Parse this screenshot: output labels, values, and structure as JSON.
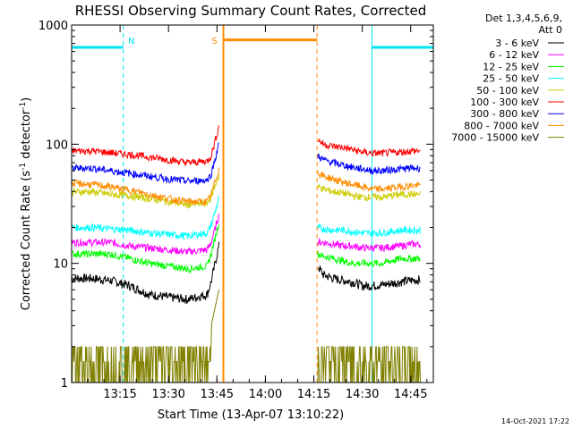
{
  "chart_data": {
    "type": "line",
    "title": "RHESSI Observing Summary Count Rates, Corrected",
    "xlabel": "Start Time (13-Apr-07 13:10:22)",
    "ylabel_main": "Corrected Count Rate (s",
    "ylabel_sup1": "-1",
    "ylabel_mid": " detector",
    "ylabel_sup2": "-1",
    "ylabel_end": ")",
    "yscale": "log",
    "ylim": [
      1,
      1000
    ],
    "xlim_minutes": [
      13.0,
      14.8667
    ],
    "x_ticks": [
      {
        "label": "13:15",
        "value": 13.25
      },
      {
        "label": "13:30",
        "value": 13.5
      },
      {
        "label": "13:45",
        "value": 13.75
      },
      {
        "label": "14:00",
        "value": 14.0
      },
      {
        "label": "14:15",
        "value": 14.25
      },
      {
        "label": "14:30",
        "value": 14.5
      },
      {
        "label": "14:45",
        "value": 14.75
      }
    ],
    "y_ticks": [
      {
        "label": "1",
        "value": 1
      },
      {
        "label": "10",
        "value": 10
      },
      {
        "label": "100",
        "value": 100
      },
      {
        "label": "1000",
        "value": 1000
      }
    ],
    "legend": {
      "position": "right",
      "header1": "Det 1,3,4,5,6,9,",
      "header2": "Att 0"
    },
    "series": [
      {
        "name": "3 - 6 keV",
        "color": "#000000",
        "segments": [
          {
            "x": [
              13.0,
              13.1,
              13.2,
              13.3,
              13.4,
              13.5,
              13.6,
              13.7,
              13.72,
              13.76
            ],
            "y": [
              7.5,
              7.5,
              7.2,
              6.5,
              5.5,
              5.2,
              5.0,
              5.5,
              7,
              14
            ]
          },
          {
            "x": [
              14.27,
              14.3,
              14.35,
              14.4,
              14.45,
              14.5,
              14.55,
              14.6,
              14.65,
              14.7,
              14.75,
              14.8
            ],
            "y": [
              9.5,
              8.0,
              7.5,
              7.2,
              7.0,
              6.5,
              6.5,
              6.6,
              6.8,
              7.0,
              7.2,
              7.3
            ]
          }
        ]
      },
      {
        "name": "6 - 12 keV",
        "color": "#ff00ff",
        "segments": [
          {
            "x": [
              13.0,
              13.1,
              13.2,
              13.3,
              13.4,
              13.5,
              13.6,
              13.7,
              13.72,
              13.76
            ],
            "y": [
              15,
              15,
              15,
              14,
              13.5,
              13,
              12.5,
              13,
              15,
              25
            ]
          },
          {
            "x": [
              14.27,
              14.3,
              14.35,
              14.4,
              14.45,
              14.5,
              14.55,
              14.6,
              14.65,
              14.7,
              14.75,
              14.8
            ],
            "y": [
              15,
              15,
              14.5,
              14,
              14,
              13.5,
              13.5,
              13.5,
              13.8,
              14,
              14.5,
              14.5
            ]
          }
        ]
      },
      {
        "name": "12 - 25 keV",
        "color": "#00ff00",
        "segments": [
          {
            "x": [
              13.0,
              13.1,
              13.2,
              13.3,
              13.4,
              13.5,
              13.6,
              13.7,
              13.72,
              13.76
            ],
            "y": [
              12,
              12,
              12,
              11,
              10,
              9.5,
              9,
              9.5,
              12,
              22
            ]
          },
          {
            "x": [
              14.27,
              14.3,
              14.35,
              14.4,
              14.45,
              14.5,
              14.55,
              14.6,
              14.65,
              14.7,
              14.75,
              14.8
            ],
            "y": [
              12,
              11.5,
              11,
              10.5,
              10,
              10,
              10,
              10,
              10.5,
              11,
              11,
              11
            ]
          }
        ]
      },
      {
        "name": "25 - 50 keV",
        "color": "#00ffff",
        "segments": [
          {
            "x": [
              13.0,
              13.1,
              13.2,
              13.3,
              13.4,
              13.5,
              13.6,
              13.7,
              13.72,
              13.76
            ],
            "y": [
              20,
              20,
              19.5,
              19,
              18,
              17.5,
              17,
              18,
              21,
              35
            ]
          },
          {
            "x": [
              14.27,
              14.3,
              14.35,
              14.4,
              14.45,
              14.5,
              14.55,
              14.6,
              14.65,
              14.7,
              14.75,
              14.8
            ],
            "y": [
              20,
              19.5,
              19,
              19,
              18.5,
              18,
              18,
              18,
              18.5,
              19,
              19,
              19
            ]
          }
        ]
      },
      {
        "name": "50 - 100 keV",
        "color": "#cccc00",
        "segments": [
          {
            "x": [
              13.0,
              13.1,
              13.2,
              13.3,
              13.4,
              13.5,
              13.6,
              13.7,
              13.72,
              13.76
            ],
            "y": [
              40,
              40,
              38,
              37,
              35,
              33,
              31,
              32,
              36,
              55
            ]
          },
          {
            "x": [
              14.27,
              14.3,
              14.35,
              14.4,
              14.45,
              14.5,
              14.55,
              14.6,
              14.65,
              14.7,
              14.75,
              14.8
            ],
            "y": [
              44,
              42,
              40,
              39,
              37,
              36,
              36,
              36,
              37,
              38,
              38,
              38
            ]
          }
        ]
      },
      {
        "name": "100 - 300 keV",
        "color": "#ff0000",
        "segments": [
          {
            "x": [
              13.0,
              13.1,
              13.2,
              13.3,
              13.4,
              13.5,
              13.6,
              13.7,
              13.72,
              13.76
            ],
            "y": [
              88,
              88,
              85,
              82,
              78,
              74,
              70,
              72,
              80,
              140
            ]
          },
          {
            "x": [
              14.27,
              14.3,
              14.35,
              14.4,
              14.45,
              14.5,
              14.55,
              14.6,
              14.65,
              14.7,
              14.75,
              14.8
            ],
            "y": [
              110,
              100,
              96,
              94,
              90,
              86,
              84,
              84,
              85,
              86,
              88,
              88
            ]
          }
        ]
      },
      {
        "name": "300 - 800 keV",
        "color": "#0000ff",
        "segments": [
          {
            "x": [
              13.0,
              13.1,
              13.2,
              13.3,
              13.4,
              13.5,
              13.6,
              13.7,
              13.72,
              13.76
            ],
            "y": [
              63,
              63,
              60,
              57,
              54,
              51,
              49,
              50,
              56,
              100
            ]
          },
          {
            "x": [
              14.27,
              14.3,
              14.35,
              14.4,
              14.45,
              14.5,
              14.55,
              14.6,
              14.65,
              14.7,
              14.75,
              14.8
            ],
            "y": [
              80,
              74,
              70,
              67,
              64,
              62,
              60,
              60,
              61,
              62,
              63,
              63
            ]
          }
        ]
      },
      {
        "name": "800 - 7000 keV",
        "color": "#ff8c00",
        "segments": [
          {
            "x": [
              13.0,
              13.1,
              13.2,
              13.3,
              13.4,
              13.5,
              13.6,
              13.7,
              13.72,
              13.76
            ],
            "y": [
              47,
              46,
              44,
              41,
              38,
              35,
              33,
              33,
              38,
              62
            ]
          },
          {
            "x": [
              14.27,
              14.3,
              14.35,
              14.4,
              14.45,
              14.5,
              14.55,
              14.6,
              14.65,
              14.7,
              14.75,
              14.8
            ],
            "y": [
              58,
              54,
              51,
              48,
              46,
              44,
              42,
              42,
              43,
              44,
              45,
              45
            ]
          }
        ]
      },
      {
        "name": "7000 - 15000 keV",
        "color": "#808000",
        "segments": [
          {
            "x": [
              13.0,
              13.1,
              13.2,
              13.3,
              13.4,
              13.5,
              13.6,
              13.7,
              13.72,
              13.76
            ],
            "y": [
              1.5,
              2,
              1,
              2,
              1.5,
              2,
              1,
              2,
              3,
              6
            ]
          },
          {
            "x": [
              14.27,
              14.3,
              14.35,
              14.4,
              14.45,
              14.5,
              14.55,
              14.6,
              14.65,
              14.7,
              14.75,
              14.8
            ],
            "y": [
              2,
              1.5,
              2,
              1,
              2,
              1.5,
              2,
              1,
              2,
              1.5,
              2,
              1.5
            ]
          }
        ]
      }
    ],
    "annotations": {
      "night": {
        "label": "N",
        "color": "#00e5ee",
        "intervals": [
          [
            13.0,
            13.2667
          ],
          [
            14.55,
            14.8667
          ]
        ],
        "level": 650
      },
      "saa": {
        "label": "S",
        "color": "#ff8c00",
        "intervals": [
          [
            13.7833,
            14.2667
          ]
        ],
        "level": 750
      }
    }
  },
  "footer": {
    "date": "14-Oct-2021 17:22"
  }
}
